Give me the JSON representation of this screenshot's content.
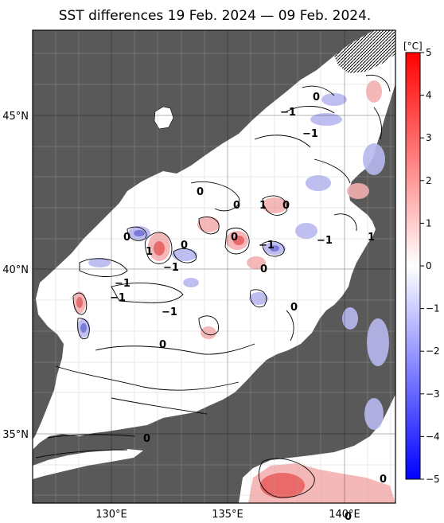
{
  "title": "SST differences 19 Feb. 2024 — 09 Feb. 2024.",
  "lon_ticks": [
    "130°E",
    "135°E",
    "140°E"
  ],
  "lat_ticks": [
    "45°N",
    "40°N",
    "35°N"
  ],
  "colorbar": {
    "unit": "[°C]",
    "ticks": [
      "5",
      "4",
      "3",
      "2",
      "1",
      "0",
      "−1",
      "−2",
      "−3",
      "−4",
      "−5"
    ],
    "warm_color": "#ff0000",
    "cold_color": "#0000ff",
    "neutral_color": "#ffffff"
  },
  "contour_labels": [
    "0",
    "−1",
    "−1",
    "0",
    "1",
    "0",
    "0",
    "1",
    "0",
    "1",
    "0",
    "−1",
    "−1",
    "0",
    "−1",
    "−1",
    "0",
    "−1",
    "−1",
    "0",
    "0",
    "0",
    "0",
    "0"
  ],
  "colors": {
    "land": "#595959",
    "sea": "#ffffff",
    "grid": "#b4b4b4"
  }
}
